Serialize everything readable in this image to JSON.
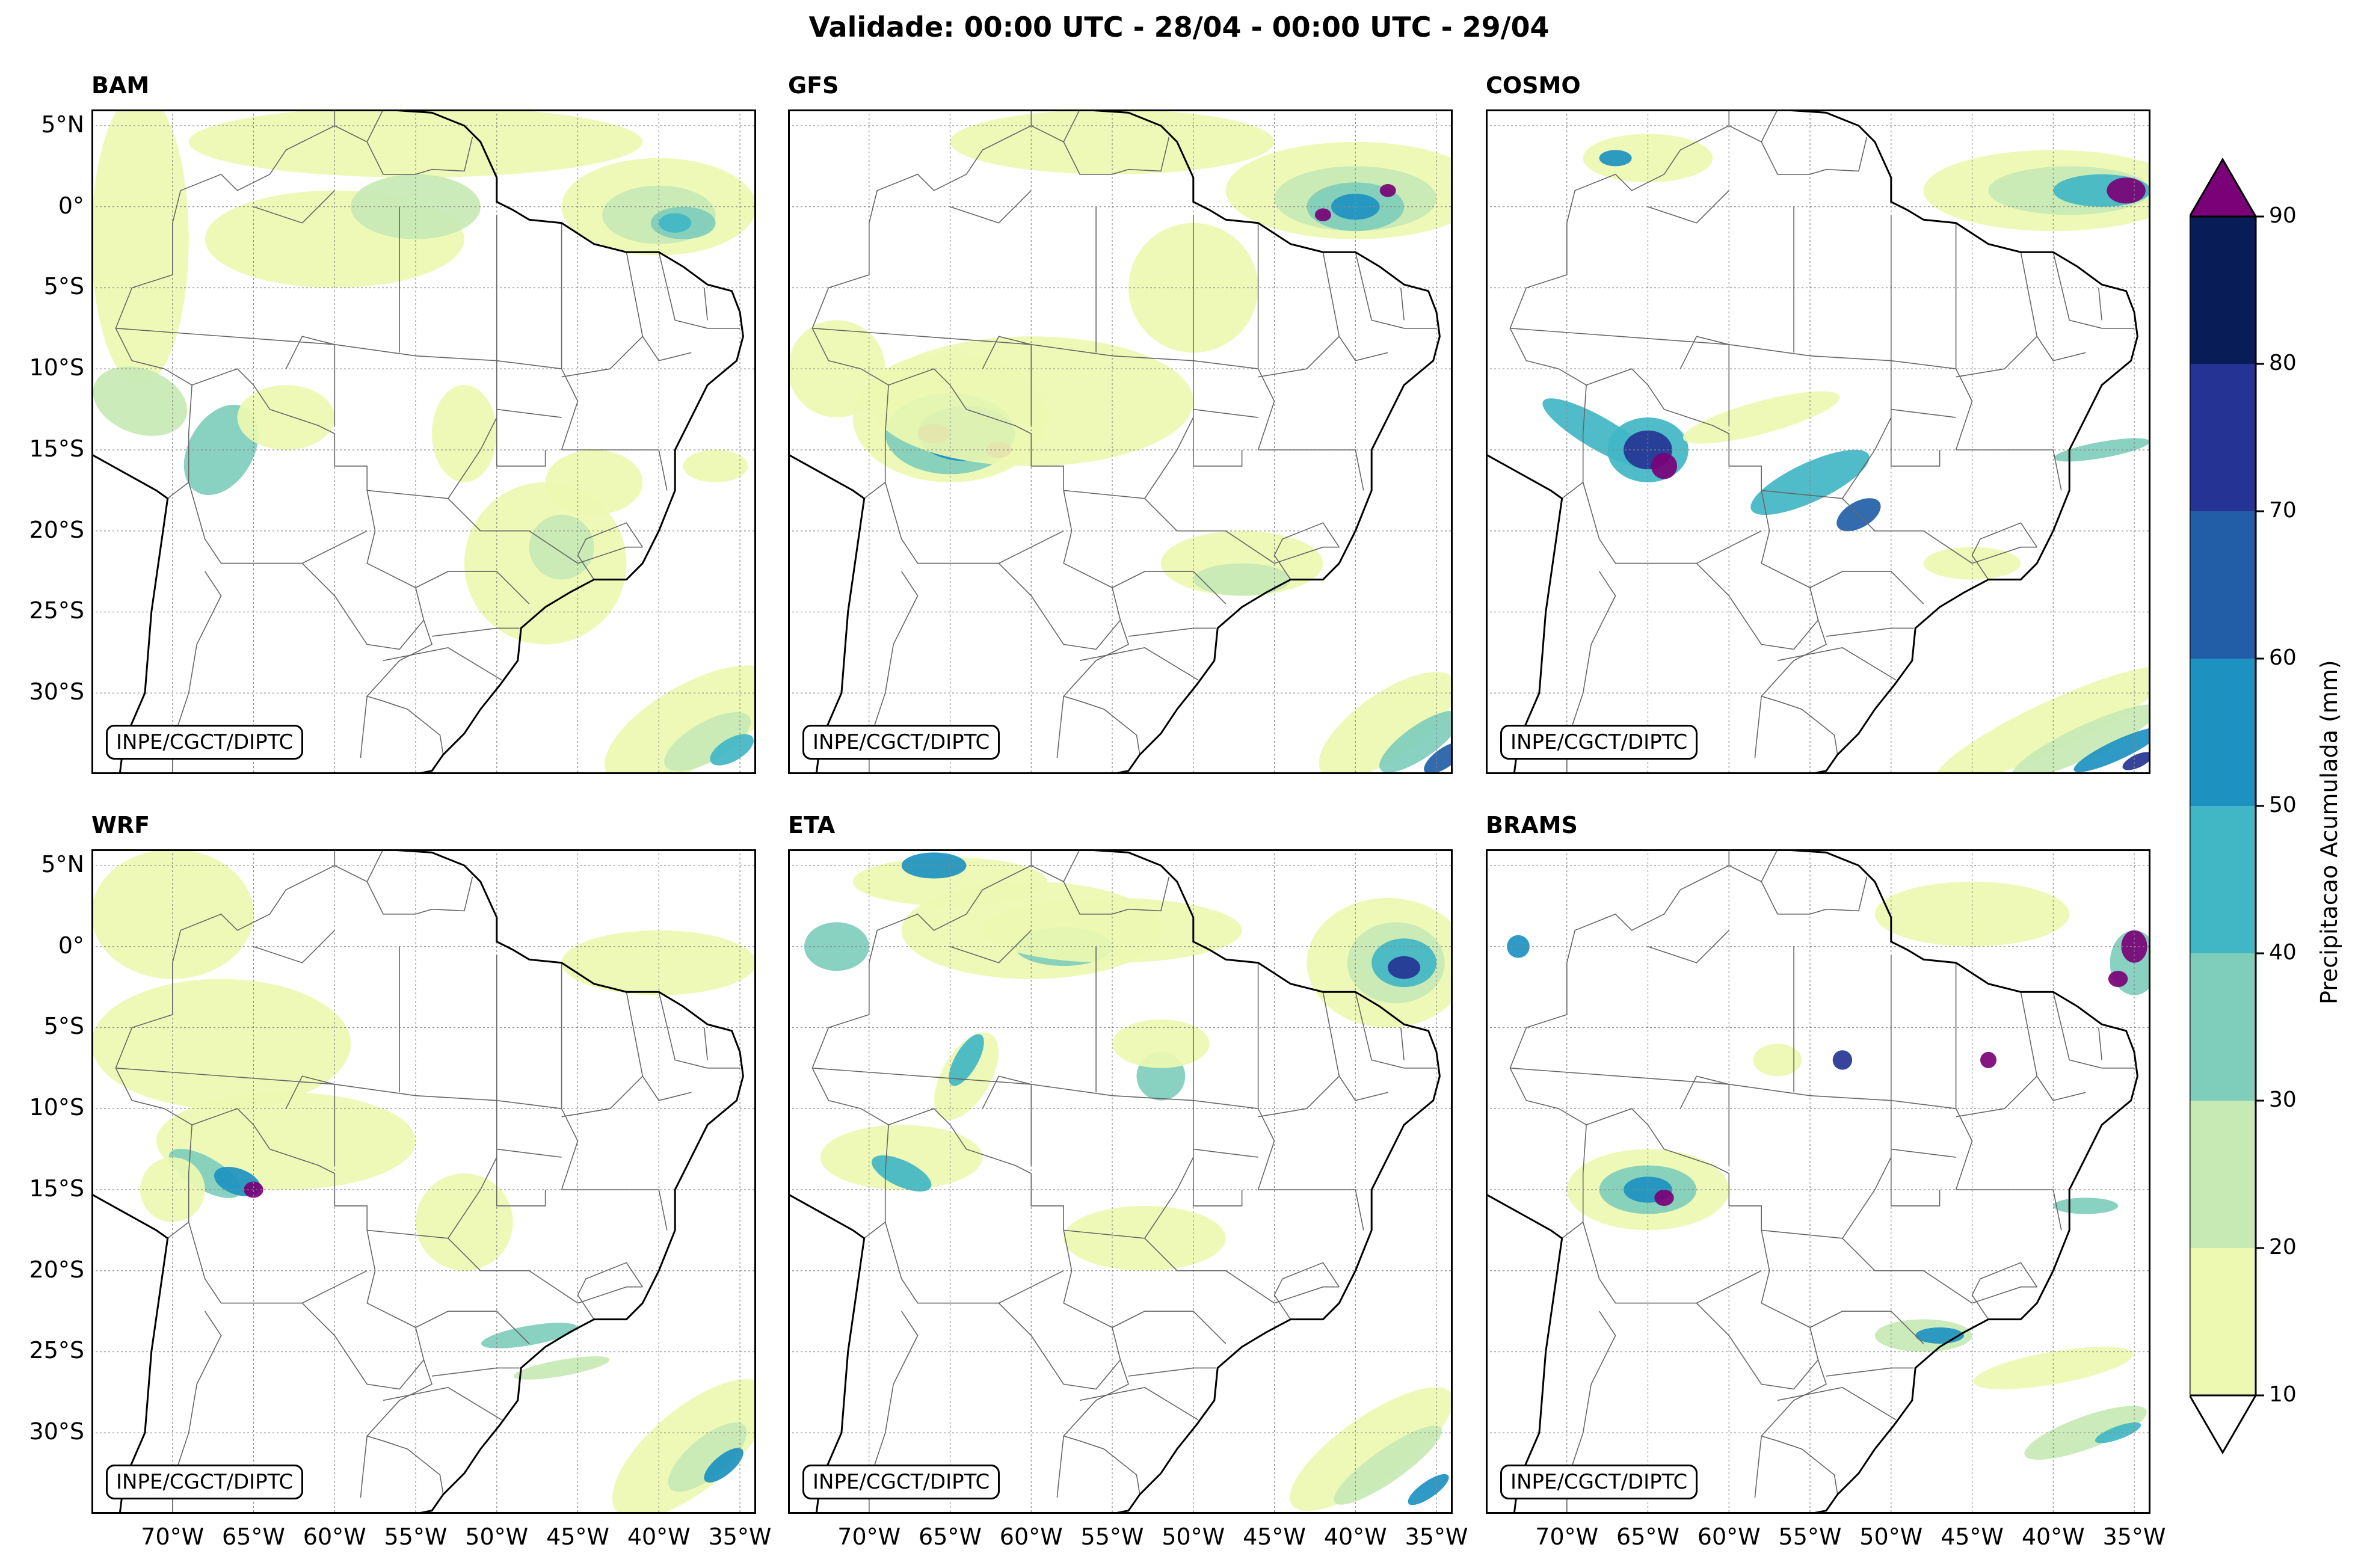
{
  "title": "Validade: 00:00 UTC - 28/04 - 00:00 UTC - 29/04",
  "credit": "INPE/CGCT/DIPTC",
  "panels": [
    {
      "name": "BAM",
      "label": "BAM"
    },
    {
      "name": "GFS",
      "label": "GFS"
    },
    {
      "name": "COSMO",
      "label": "COSMO"
    },
    {
      "name": "WRF",
      "label": "WRF"
    },
    {
      "name": "ETA",
      "label": "ETA"
    },
    {
      "name": "BRAMS",
      "label": "BRAMS"
    }
  ],
  "latitude_labels": [
    "5°N",
    "0°",
    "5°S",
    "10°S",
    "15°S",
    "20°S",
    "25°S",
    "30°S"
  ],
  "longitude_labels": [
    "70°W",
    "65°W",
    "60°W",
    "55°W",
    "50°W",
    "45°W",
    "40°W",
    "35°W"
  ],
  "colorbar": {
    "title": "Precipitacao Acumulada (mm)",
    "levels": [
      "10",
      "20",
      "30",
      "40",
      "50",
      "60",
      "70",
      "80",
      "90"
    ],
    "colors": [
      "#edf8b1",
      "#c7e9b4",
      "#7fcdbb",
      "#41b6c4",
      "#1d91c0",
      "#225ea8",
      "#253494",
      "#081d58"
    ],
    "over_color": "#7a0177",
    "under_color": "#ffffff"
  }
}
